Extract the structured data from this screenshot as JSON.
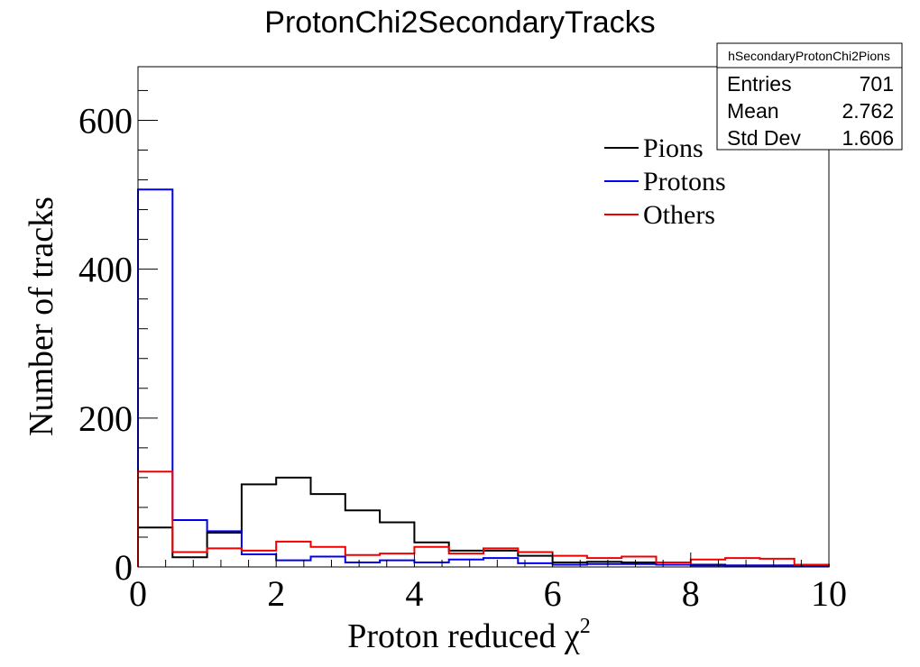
{
  "chart_data": {
    "type": "step-histogram",
    "title": "ProtonChi2SecondaryTracks",
    "xlabel": "Proton reduced χ",
    "xlabel_superscript": "2",
    "ylabel": "Number of tracks",
    "xlim": [
      0,
      10
    ],
    "ylim": [
      0,
      672
    ],
    "x_ticks": [
      0,
      2,
      4,
      6,
      8,
      10
    ],
    "y_ticks": [
      0,
      200,
      400,
      600
    ],
    "bin_edges": [
      0,
      0.5,
      1,
      1.5,
      2,
      2.5,
      3,
      3.5,
      4,
      4.5,
      5,
      5.5,
      6,
      6.5,
      7,
      7.5,
      8,
      8.5,
      9,
      9.5,
      10
    ],
    "series": [
      {
        "name": "Pions",
        "color": "#000000",
        "values": [
          53,
          13,
          46,
          111,
          120,
          98,
          76,
          60,
          33,
          22,
          22,
          15,
          6,
          7,
          6,
          3,
          3,
          2,
          2,
          1
        ]
      },
      {
        "name": "Protons",
        "color": "#0000ee",
        "values": [
          507,
          63,
          48,
          17,
          9,
          14,
          6,
          9,
          6,
          10,
          12,
          5,
          3,
          4,
          4,
          3,
          2,
          2,
          2,
          1
        ]
      },
      {
        "name": "Others",
        "color": "#ee0000",
        "values": [
          128,
          20,
          25,
          22,
          34,
          27,
          16,
          18,
          27,
          18,
          25,
          20,
          15,
          12,
          14,
          6,
          10,
          12,
          11,
          3
        ]
      }
    ],
    "grid": false,
    "legend_position": "top-right"
  },
  "stats_box": {
    "name": "hSecondaryProtonChi2Pions",
    "rows": [
      {
        "label": "Entries",
        "value": "701"
      },
      {
        "label": "Mean",
        "value": "2.762"
      },
      {
        "label": "Std Dev",
        "value": "1.606"
      }
    ]
  }
}
